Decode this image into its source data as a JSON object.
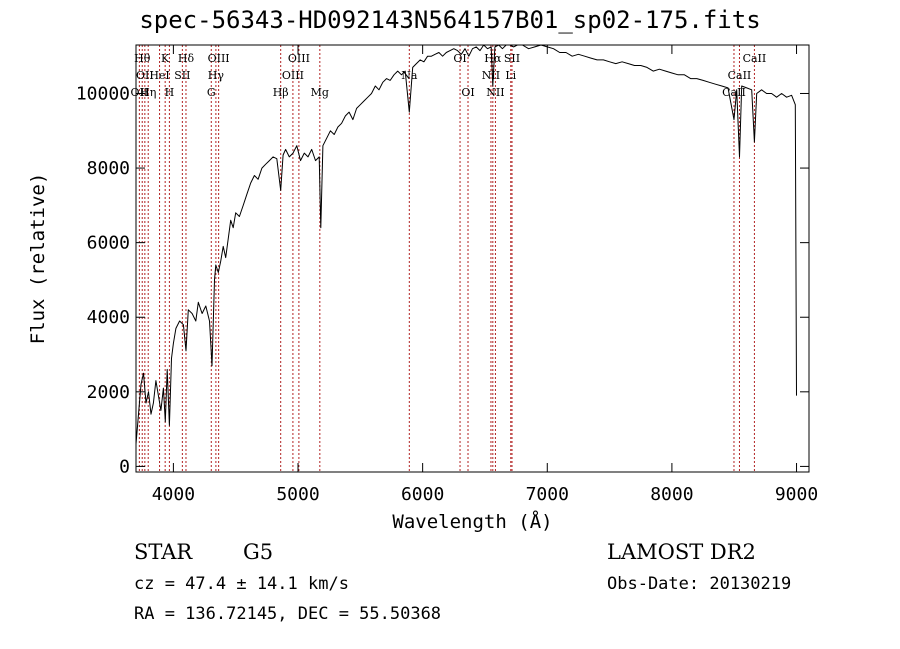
{
  "chart_data": {
    "type": "line",
    "title": "spec-56343-HD092143N564157B01_sp02-175.fits",
    "xlabel": "Wavelength (Å)",
    "ylabel": "Flux (relative)",
    "xlim": [
      3700,
      9100
    ],
    "ylim": [
      -150,
      11300
    ],
    "xticks": [
      4000,
      5000,
      6000,
      7000,
      8000,
      9000
    ],
    "yticks": [
      0,
      2000,
      4000,
      6000,
      8000,
      10000
    ],
    "grid": false,
    "series": [
      {
        "x": [
          3700,
          3720,
          3740,
          3760,
          3780,
          3800,
          3820,
          3840,
          3860,
          3880,
          3900,
          3920,
          3935,
          3950,
          3968,
          3985,
          4000,
          4020,
          4050,
          4080,
          4101,
          4120,
          4150,
          4180,
          4200,
          4230,
          4260,
          4290,
          4310,
          4330,
          4340,
          4360,
          4380,
          4400,
          4420,
          4440,
          4460,
          4480,
          4500,
          4530,
          4560,
          4590,
          4620,
          4650,
          4680,
          4710,
          4740,
          4770,
          4800,
          4830,
          4861,
          4880,
          4900,
          4930,
          4960,
          4990,
          5020,
          5050,
          5080,
          5110,
          5140,
          5170,
          5183,
          5200,
          5230,
          5260,
          5290,
          5320,
          5350,
          5380,
          5410,
          5440,
          5470,
          5500,
          5530,
          5560,
          5590,
          5620,
          5650,
          5680,
          5710,
          5740,
          5770,
          5800,
          5830,
          5860,
          5893,
          5920,
          5950,
          5980,
          6010,
          6040,
          6070,
          6100,
          6130,
          6160,
          6190,
          6220,
          6250,
          6280,
          6310,
          6340,
          6370,
          6400,
          6430,
          6460,
          6490,
          6520,
          6550,
          6563,
          6580,
          6610,
          6640,
          6670,
          6700,
          6730,
          6760,
          6800,
          6850,
          6900,
          6950,
          7000,
          7050,
          7100,
          7150,
          7200,
          7250,
          7300,
          7350,
          7400,
          7450,
          7500,
          7550,
          7600,
          7650,
          7700,
          7750,
          7800,
          7850,
          7900,
          7950,
          8000,
          8050,
          8100,
          8150,
          8200,
          8250,
          8300,
          8350,
          8400,
          8450,
          8498,
          8520,
          8542,
          8560,
          8600,
          8640,
          8662,
          8680,
          8720,
          8760,
          8800,
          8840,
          8880,
          8920,
          8960,
          8990,
          9000
        ],
        "y": [
          600,
          1400,
          2200,
          2500,
          1700,
          2000,
          1400,
          1700,
          2300,
          1900,
          1500,
          2100,
          1200,
          2600,
          1100,
          2900,
          3300,
          3700,
          3900,
          3800,
          3100,
          4200,
          4100,
          3900,
          4400,
          4100,
          4300,
          3900,
          2700,
          5000,
          5400,
          5200,
          5500,
          5900,
          5600,
          6100,
          6600,
          6400,
          6800,
          6700,
          7000,
          7300,
          7600,
          7800,
          7700,
          8000,
          8100,
          8200,
          8300,
          8250,
          7400,
          8350,
          8500,
          8300,
          8400,
          8600,
          8200,
          8400,
          8300,
          8500,
          8200,
          8300,
          6400,
          8600,
          8800,
          9000,
          8900,
          9100,
          9200,
          9400,
          9500,
          9300,
          9600,
          9700,
          9800,
          9900,
          10000,
          10200,
          10100,
          10300,
          10400,
          10350,
          10500,
          10600,
          10500,
          10600,
          9500,
          10700,
          10800,
          10900,
          10850,
          11000,
          11000,
          11050,
          11100,
          11000,
          11100,
          11150,
          11200,
          11150,
          11050,
          11200,
          11000,
          11200,
          11250,
          11150,
          11300,
          11200,
          11250,
          10200,
          11250,
          11300,
          11200,
          11300,
          11300,
          11250,
          11300,
          11300,
          11200,
          11250,
          11300,
          11250,
          11200,
          11100,
          11100,
          11000,
          11050,
          11000,
          10950,
          10900,
          10900,
          10850,
          10800,
          10850,
          10800,
          10750,
          10750,
          10700,
          10600,
          10650,
          10600,
          10550,
          10500,
          10500,
          10400,
          10400,
          10350,
          10300,
          10250,
          10200,
          10150,
          9300,
          10100,
          8300,
          10200,
          10150,
          10100,
          8700,
          10000,
          10100,
          10000,
          10000,
          9900,
          10000,
          9900,
          9950,
          9700,
          1900
        ]
      }
    ],
    "lines": [
      {
        "wave": 3727,
        "labels": [
          "OII"
        ],
        "row": 3
      },
      {
        "wave": 3750,
        "labels": [
          "Hθ"
        ],
        "row": 1
      },
      {
        "wave": 3771,
        "labels": [
          "OII"
        ],
        "row": 2
      },
      {
        "wave": 3798,
        "labels": [
          "Hη"
        ],
        "row": 3
      },
      {
        "wave": 3889,
        "labels": [
          "HeI"
        ],
        "row": 2
      },
      {
        "wave": 3934,
        "labels": [
          "K"
        ],
        "row": 1
      },
      {
        "wave": 3968,
        "labels": [
          "H"
        ],
        "row": 3
      },
      {
        "wave": 4072,
        "labels": [
          "SII"
        ],
        "row": 2
      },
      {
        "wave": 4101,
        "labels": [
          "Hδ"
        ],
        "row": 1
      },
      {
        "wave": 4304,
        "labels": [
          "G"
        ],
        "row": 3
      },
      {
        "wave": 4341,
        "labels": [
          "Hγ"
        ],
        "row": 2
      },
      {
        "wave": 4363,
        "labels": [
          "OIII"
        ],
        "row": 1
      },
      {
        "wave": 4861,
        "labels": [
          "Hβ"
        ],
        "row": 3
      },
      {
        "wave": 4959,
        "labels": [
          "OIII"
        ],
        "row": 2
      },
      {
        "wave": 5007,
        "labels": [
          "OIII"
        ],
        "row": 1
      },
      {
        "wave": 5175,
        "labels": [
          "Mg"
        ],
        "row": 3
      },
      {
        "wave": 5893,
        "labels": [
          "Na"
        ],
        "row": 2
      },
      {
        "wave": 6300,
        "labels": [
          "OI"
        ],
        "row": 1
      },
      {
        "wave": 6364,
        "labels": [
          "OI"
        ],
        "row": 3
      },
      {
        "wave": 6548,
        "labels": [
          "NII"
        ],
        "row": 2
      },
      {
        "wave": 6563,
        "labels": [
          "Hα"
        ],
        "row": 1
      },
      {
        "wave": 6584,
        "labels": [
          "NII"
        ],
        "row": 3
      },
      {
        "wave": 6707,
        "labels": [
          "Li"
        ],
        "row": 2
      },
      {
        "wave": 6717,
        "labels": [
          "SII"
        ],
        "row": 1
      },
      {
        "wave": 8498,
        "labels": [
          "CaII"
        ],
        "row": 3
      },
      {
        "wave": 8542,
        "labels": [
          "CaII"
        ],
        "row": 2
      },
      {
        "wave": 8662,
        "labels": [
          "CaII"
        ],
        "row": 1
      }
    ]
  },
  "info": {
    "object_class": "STAR",
    "subclass": "G5",
    "survey": "LAMOST DR2",
    "cz": "cz = 47.4 ± 14.1 km/s",
    "obs_date": "Obs-Date: 20130219",
    "coords": "RA = 136.72145, DEC =  55.50368"
  }
}
